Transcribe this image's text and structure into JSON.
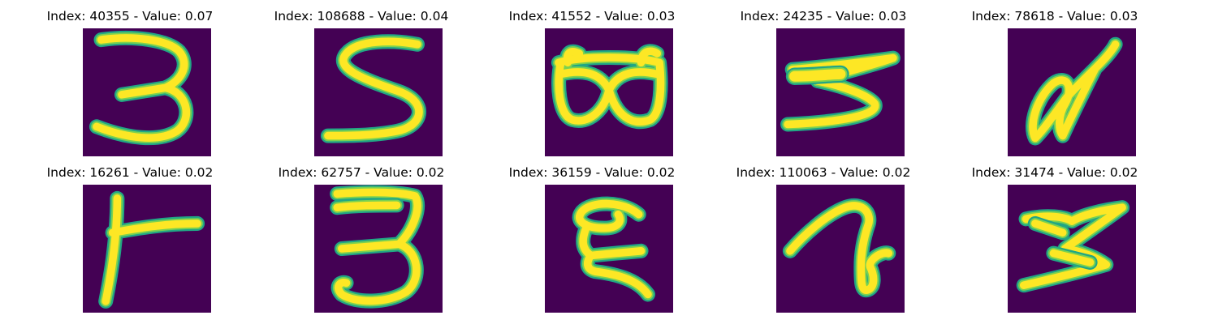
{
  "colors": {
    "background": "#440154",
    "stroke_edge": "#21a685",
    "stroke_mid": "#7ad151",
    "stroke_core": "#fde725"
  },
  "panels": [
    {
      "title": "Index: 40355 - Value: 0.07",
      "index": 40355,
      "value": 0.07
    },
    {
      "title": "Index: 108688 - Value: 0.04",
      "index": 108688,
      "value": 0.04
    },
    {
      "title": "Index: 41552 - Value: 0.03",
      "index": 41552,
      "value": 0.03
    },
    {
      "title": "Index: 24235 - Value: 0.03",
      "index": 24235,
      "value": 0.03
    },
    {
      "title": "Index: 78618 - Value: 0.03",
      "index": 78618,
      "value": 0.03
    },
    {
      "title": "Index: 16261 - Value: 0.02",
      "index": 16261,
      "value": 0.02
    },
    {
      "title": "Index: 62757 - Value: 0.02",
      "index": 62757,
      "value": 0.02
    },
    {
      "title": "Index: 36159 - Value: 0.02",
      "index": 36159,
      "value": 0.02
    },
    {
      "title": "Index: 110063 - Value: 0.02",
      "index": 110063,
      "value": 0.02
    },
    {
      "title": "Index: 31474 - Value: 0.02",
      "index": 31474,
      "value": 0.02
    }
  ]
}
